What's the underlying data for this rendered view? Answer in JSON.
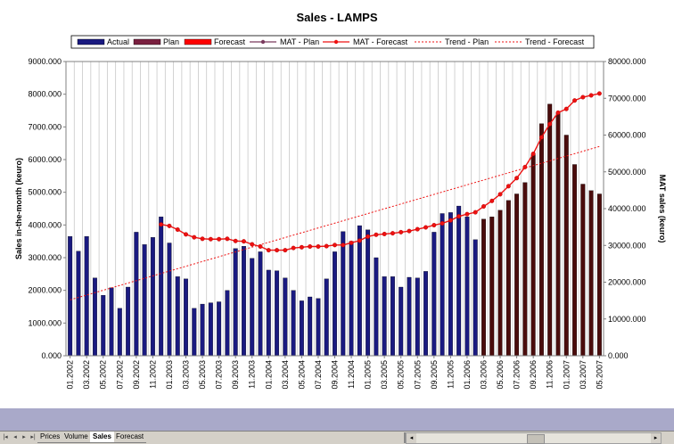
{
  "chart_data": {
    "type": "bar",
    "title": "Sales - LAMPS",
    "ylabel": "Sales in-the-month (keuro)",
    "y2label": "MAT sales (keuro)",
    "ylim": [
      0,
      9000
    ],
    "y2lim": [
      0,
      80000
    ],
    "yticks": [
      "0.000",
      "1000.000",
      "2000.000",
      "3000.000",
      "4000.000",
      "5000.000",
      "6000.000",
      "7000.000",
      "8000.000",
      "9000.000"
    ],
    "y2ticks": [
      "0.000",
      "10000.000",
      "20000.000",
      "30000.000",
      "40000.000",
      "50000.000",
      "60000.000",
      "70000.000",
      "80000.000"
    ],
    "x_tick_labels": [
      "01.2002",
      "03.2002",
      "05.2002",
      "07.2002",
      "09.2002",
      "11.2002",
      "01.2003",
      "03.2003",
      "05.2003",
      "07.2003",
      "09.2003",
      "11.2003",
      "01.2004",
      "03.2004",
      "05.2004",
      "07.2004",
      "09.2004",
      "11.2004",
      "01.2005",
      "03.2005",
      "05.2005",
      "07.2005",
      "09.2005",
      "11.2005",
      "01.2006",
      "03.2006",
      "05.2006",
      "07.2006",
      "09.2006",
      "11.2006",
      "01.2007",
      "03.2007",
      "05.2007"
    ],
    "grid": true,
    "legend_position": "top",
    "legend": [
      "Actual",
      "Plan",
      "Forecast",
      "MAT - Plan",
      "MAT - Forecast",
      "Trend - Plan",
      "Trend - Forecast"
    ],
    "colors": {
      "actual": "#1a1a80",
      "plan": "#7a2040",
      "forecast": "#4a0c0c",
      "forecast_legend": "#ff0000",
      "mat_plan": "#7a3b5e",
      "mat_forecast": "#ee1111",
      "trend": "#ee1111",
      "gridline": "#c8c8c8"
    },
    "series": [
      {
        "name": "Actual",
        "kind": "bar",
        "values": [
          3650,
          3200,
          3650,
          2380,
          1850,
          2080,
          1450,
          2100,
          3780,
          3400,
          3620,
          4250,
          3450,
          2420,
          2350,
          1450,
          1580,
          1620,
          1650,
          2000,
          3280,
          3350,
          2980,
          3180,
          2620,
          2600,
          2380,
          2000,
          1680,
          1800,
          1750,
          2350,
          3180,
          3800,
          3500,
          3980,
          3850,
          3000,
          2420,
          2420,
          2100,
          2400,
          2380,
          2580,
          3780,
          4350,
          4380,
          4580,
          4250,
          3550
        ]
      },
      {
        "name": "Forecast",
        "kind": "bar",
        "values": [
          null,
          null,
          null,
          null,
          null,
          null,
          null,
          null,
          null,
          null,
          null,
          null,
          null,
          null,
          null,
          null,
          null,
          null,
          null,
          null,
          null,
          null,
          null,
          null,
          null,
          null,
          null,
          null,
          null,
          null,
          null,
          null,
          null,
          null,
          null,
          null,
          null,
          null,
          null,
          null,
          null,
          null,
          null,
          null,
          null,
          null,
          null,
          null,
          null,
          null,
          4180,
          4250,
          4450,
          4750,
          4950,
          5300,
          6150,
          7100,
          7700,
          7450,
          6750,
          5850,
          5250,
          5050,
          4950
        ]
      },
      {
        "name": "MAT - Forecast",
        "kind": "line",
        "axis": "y2",
        "values": [
          null,
          null,
          null,
          null,
          null,
          null,
          null,
          null,
          null,
          null,
          null,
          35700,
          35300,
          34300,
          33000,
          32200,
          31800,
          31700,
          31700,
          31800,
          31200,
          31100,
          30300,
          29700,
          28700,
          28700,
          28700,
          29300,
          29500,
          29700,
          29700,
          29800,
          30100,
          30100,
          30700,
          31300,
          32400,
          32900,
          33100,
          33300,
          33600,
          33900,
          34400,
          34900,
          35500,
          36000,
          36800,
          37900,
          38500,
          39000,
          40600,
          42100,
          43900,
          46100,
          48300,
          51300,
          54900,
          59400,
          63000,
          66100,
          67100,
          69400,
          70300,
          70800,
          71300
        ]
      },
      {
        "name": "Trend - Forecast",
        "kind": "trend",
        "axis": "y2",
        "values": [
          15200,
          56900
        ]
      }
    ]
  },
  "sheet_tabs": [
    "Prices",
    "Volume",
    "Sales",
    "Forecast"
  ],
  "active_tab": "Sales"
}
